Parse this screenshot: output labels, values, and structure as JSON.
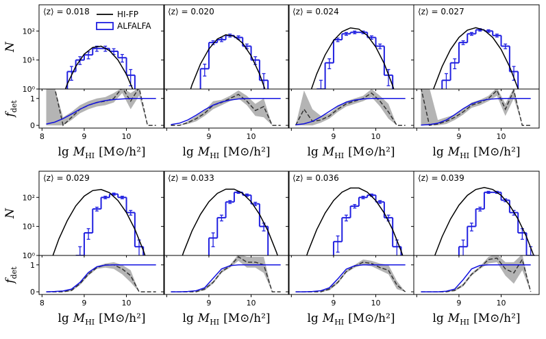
{
  "axes": {
    "xlabel": {
      "prefix": "lg",
      "symbol": "M",
      "subscript": "HI",
      "unit": "[M⊙/h²]"
    },
    "ylabel_top": "N",
    "ylabel_bottom": {
      "symbol": "f",
      "subscript": "det"
    },
    "xlim": [
      7.93,
      10.9
    ],
    "xticks": [
      8,
      9,
      10
    ],
    "ylim": [
      1,
      800
    ],
    "log_y": true,
    "yticks": [
      {
        "value": 1,
        "label": "10⁰"
      },
      {
        "value": 10,
        "label": "10¹"
      },
      {
        "value": 100,
        "label": "10²"
      }
    ],
    "fdet_ylim": [
      -0.1,
      1.35
    ],
    "fdet_yticks": [
      0,
      1
    ],
    "legend": [
      {
        "name": "HI-FP",
        "color": "#000000"
      },
      {
        "name": "ALFALFA",
        "color": "#1f1fe0"
      }
    ],
    "colors": {
      "fdet_model": "#1010e0",
      "fdet_ratio": "#333333",
      "band": "#b4b4b4"
    }
  },
  "chart_data": [
    {
      "type": "histogram",
      "annotation": "⟨z⟩ = 0.018",
      "bins": [
        8.0,
        8.2,
        8.4,
        8.6,
        8.8,
        9.0,
        9.2,
        9.4,
        9.6,
        9.8,
        10.0,
        10.2,
        10.4,
        10.6,
        10.8
      ],
      "counts": [
        null,
        null,
        null,
        4,
        10,
        15,
        25,
        25,
        20,
        12,
        3,
        null,
        null,
        null
      ],
      "errors": [
        null,
        null,
        null,
        2,
        3,
        4,
        5,
        5,
        4.5,
        3.5,
        1.7,
        null,
        null,
        null
      ],
      "curve_x": [
        8.2,
        8.4,
        8.6,
        8.8,
        9.0,
        9.2,
        9.4,
        9.6,
        9.8,
        10.0,
        10.2,
        10.4,
        10.6,
        10.8
      ],
      "curve": [
        0.03,
        0.25,
        1.5,
        6,
        16,
        27,
        30,
        21,
        10,
        3.2,
        0.66,
        0.09,
        0.01,
        0.001
      ],
      "fdet_x": [
        8.1,
        8.3,
        8.5,
        8.7,
        8.9,
        9.1,
        9.3,
        9.5,
        9.7,
        9.9,
        10.1,
        10.3,
        10.5,
        10.7
      ],
      "fdet_model": [
        0.05,
        0.12,
        0.25,
        0.42,
        0.6,
        0.75,
        0.85,
        0.92,
        0.96,
        0.98,
        1,
        1,
        1,
        1
      ],
      "fdet_ratio": [
        1.4,
        1.4,
        0,
        0.3,
        0.6,
        0.75,
        0.85,
        0.9,
        1.0,
        1.4,
        0.9,
        1.4,
        0,
        0
      ],
      "fdet_low": [
        0,
        0,
        0,
        0.2,
        0.45,
        0.6,
        0.7,
        0.75,
        0.85,
        1.2,
        0.6,
        1.1,
        0,
        0
      ],
      "fdet_high": [
        1.4,
        1.4,
        0.3,
        0.5,
        0.75,
        0.9,
        1.0,
        1.05,
        1.2,
        1.4,
        1.2,
        1.4,
        0,
        0
      ]
    },
    {
      "type": "histogram",
      "annotation": "⟨z⟩ = 0.020",
      "bins": [
        8.0,
        8.2,
        8.4,
        8.6,
        8.8,
        9.0,
        9.2,
        9.4,
        9.6,
        9.8,
        10.0,
        10.2,
        10.4,
        10.6,
        10.8
      ],
      "counts": [
        null,
        null,
        null,
        null,
        5,
        40,
        50,
        70,
        60,
        30,
        10,
        2,
        null,
        null
      ],
      "errors": [
        null,
        null,
        null,
        null,
        2.2,
        6,
        7,
        8,
        8,
        5.5,
        3,
        1.4,
        null,
        null
      ],
      "curve_x": [
        8.2,
        8.4,
        8.6,
        8.8,
        9.0,
        9.2,
        9.4,
        9.6,
        9.8,
        10.0,
        10.2,
        10.4,
        10.6,
        10.8
      ],
      "curve": [
        0.013,
        0.17,
        1.4,
        7.3,
        24,
        53,
        74,
        66,
        38,
        14,
        3.3,
        0.5,
        0.05,
        0.005
      ],
      "fdet_x": [
        8.1,
        8.3,
        8.5,
        8.7,
        8.9,
        9.1,
        9.3,
        9.5,
        9.7,
        9.9,
        10.1,
        10.3,
        10.5,
        10.7
      ],
      "fdet_model": [
        0.03,
        0.08,
        0.2,
        0.38,
        0.58,
        0.75,
        0.87,
        0.94,
        0.98,
        1,
        1,
        1,
        1,
        1
      ],
      "fdet_ratio": [
        0,
        0,
        0.1,
        0.25,
        0.45,
        0.75,
        0.85,
        1.0,
        1.15,
        0.9,
        0.55,
        0.7,
        0,
        0
      ],
      "fdet_low": [
        0,
        0,
        0.05,
        0.15,
        0.35,
        0.6,
        0.75,
        0.9,
        1.0,
        0.75,
        0.35,
        0.3,
        0,
        0
      ],
      "fdet_high": [
        0,
        0,
        0.15,
        0.35,
        0.55,
        0.9,
        0.95,
        1.1,
        1.3,
        1.1,
        0.8,
        1.0,
        0,
        0
      ]
    },
    {
      "type": "histogram",
      "annotation": "⟨z⟩ = 0.024",
      "bins": [
        8.0,
        8.2,
        8.4,
        8.6,
        8.8,
        9.0,
        9.2,
        9.4,
        9.6,
        9.8,
        10.0,
        10.2,
        10.4,
        10.6,
        10.8
      ],
      "counts": [
        null,
        null,
        null,
        1,
        8,
        50,
        80,
        90,
        90,
        60,
        30,
        3,
        null,
        null
      ],
      "errors": [
        null,
        null,
        null,
        1,
        3,
        7,
        9,
        9.5,
        9.5,
        8,
        5.5,
        1.7,
        null,
        null
      ],
      "curve_x": [
        8.2,
        8.4,
        8.6,
        8.8,
        9.0,
        9.2,
        9.4,
        9.6,
        9.8,
        10.0,
        10.2,
        10.4,
        10.6,
        10.8
      ],
      "curve": [
        0.05,
        0.49,
        3.3,
        15,
        47,
        95,
        128,
        116,
        70,
        28,
        7.5,
        1.3,
        0.16,
        0.01
      ],
      "fdet_x": [
        8.1,
        8.3,
        8.5,
        8.7,
        8.9,
        9.1,
        9.3,
        9.5,
        9.7,
        9.9,
        10.1,
        10.3,
        10.5,
        10.7
      ],
      "fdet_model": [
        0.02,
        0.06,
        0.15,
        0.32,
        0.52,
        0.72,
        0.86,
        0.94,
        0.98,
        1,
        1,
        1,
        1,
        1
      ],
      "fdet_ratio": [
        0,
        0.6,
        0.15,
        0.2,
        0.35,
        0.6,
        0.8,
        0.9,
        1.0,
        1.2,
        0.9,
        0.5,
        0,
        0
      ],
      "fdet_low": [
        0,
        0,
        0,
        0.1,
        0.25,
        0.5,
        0.7,
        0.8,
        0.9,
        1.05,
        0.7,
        0.25,
        0,
        0
      ],
      "fdet_high": [
        0,
        1.3,
        0.6,
        0.35,
        0.45,
        0.7,
        0.9,
        1.0,
        1.1,
        1.35,
        1.1,
        0.8,
        0,
        0
      ]
    },
    {
      "type": "histogram",
      "annotation": "⟨z⟩ = 0.027",
      "bins": [
        8.0,
        8.2,
        8.4,
        8.6,
        8.8,
        9.0,
        9.2,
        9.4,
        9.6,
        9.8,
        10.0,
        10.2,
        10.4,
        10.6,
        10.8
      ],
      "counts": [
        null,
        null,
        null,
        2,
        8,
        40,
        80,
        110,
        100,
        70,
        30,
        4,
        null,
        null
      ],
      "errors": [
        null,
        null,
        null,
        1.4,
        3,
        6,
        9,
        10.5,
        10,
        8,
        5.5,
        2,
        null,
        null
      ],
      "curve_x": [
        8.2,
        8.4,
        8.6,
        8.8,
        9.0,
        9.2,
        9.4,
        9.6,
        9.8,
        10.0,
        10.2,
        10.4,
        10.6,
        10.8
      ],
      "curve": [
        0.12,
        1.03,
        5.9,
        23,
        60,
        107,
        130,
        107,
        60,
        23,
        5.9,
        1.03,
        0.12,
        0.01
      ],
      "fdet_x": [
        8.1,
        8.3,
        8.5,
        8.7,
        8.9,
        9.1,
        9.3,
        9.5,
        9.7,
        9.9,
        10.1,
        10.3,
        10.5,
        10.7
      ],
      "fdet_model": [
        0.01,
        0.03,
        0.08,
        0.2,
        0.4,
        0.62,
        0.8,
        0.91,
        0.97,
        0.99,
        1,
        1,
        1,
        1
      ],
      "fdet_ratio": [
        1.4,
        0,
        0.05,
        0.15,
        0.3,
        0.5,
        0.75,
        0.85,
        1.0,
        1.3,
        0.6,
        1.3,
        0,
        0
      ],
      "fdet_low": [
        0,
        0,
        0,
        0.05,
        0.2,
        0.4,
        0.65,
        0.75,
        0.9,
        1.1,
        0.35,
        1.0,
        0,
        0
      ],
      "fdet_high": [
        1.4,
        1.4,
        0.2,
        0.3,
        0.4,
        0.6,
        0.85,
        0.95,
        1.1,
        1.4,
        0.8,
        1.4,
        0,
        0
      ]
    },
    {
      "type": "histogram",
      "annotation": "⟨z⟩ = 0.029",
      "bins": [
        8.0,
        8.2,
        8.4,
        8.6,
        8.8,
        9.0,
        9.2,
        9.4,
        9.6,
        9.8,
        10.0,
        10.2,
        10.4,
        10.6,
        10.8
      ],
      "counts": [
        null,
        null,
        null,
        null,
        1,
        6,
        40,
        100,
        130,
        100,
        30,
        2,
        null,
        null
      ],
      "errors": [
        null,
        null,
        null,
        null,
        1,
        2.4,
        6,
        10,
        11,
        10,
        5.5,
        1.4,
        null,
        null
      ],
      "curve_x": [
        8.2,
        8.4,
        8.6,
        8.8,
        9.0,
        9.2,
        9.4,
        9.6,
        9.8,
        10.0,
        10.2,
        10.4,
        10.6,
        10.8
      ],
      "curve": [
        0.58,
        3.7,
        16,
        51,
        111,
        172,
        188,
        145,
        78,
        30,
        8,
        1.5,
        0.2,
        0.02
      ],
      "fdet_x": [
        8.1,
        8.3,
        8.5,
        8.7,
        8.9,
        9.1,
        9.3,
        9.5,
        9.7,
        9.9,
        10.1,
        10.3,
        10.5,
        10.7
      ],
      "fdet_model": [
        0,
        0.01,
        0.03,
        0.1,
        0.35,
        0.72,
        0.93,
        0.99,
        1,
        1,
        1,
        1,
        1,
        1
      ],
      "fdet_ratio": [
        0,
        0,
        0,
        0.05,
        0.3,
        0.65,
        0.9,
        1.0,
        1.0,
        0.85,
        0.6,
        0,
        0,
        0
      ],
      "fdet_low": [
        0,
        0,
        0,
        0.02,
        0.25,
        0.6,
        0.85,
        0.9,
        0.85,
        0.65,
        0.35,
        0,
        0,
        0
      ],
      "fdet_high": [
        0,
        0,
        0,
        0.1,
        0.35,
        0.7,
        0.95,
        1.05,
        1.1,
        1.0,
        0.8,
        0,
        0,
        0
      ]
    },
    {
      "type": "histogram",
      "annotation": "⟨z⟩ = 0.033",
      "bins": [
        8.0,
        8.2,
        8.4,
        8.6,
        8.8,
        9.0,
        9.2,
        9.4,
        9.6,
        9.8,
        10.0,
        10.2,
        10.4,
        10.6,
        10.8
      ],
      "counts": [
        null,
        null,
        null,
        null,
        null,
        4,
        20,
        70,
        150,
        120,
        60,
        10,
        null,
        null
      ],
      "errors": [
        null,
        null,
        null,
        null,
        null,
        2,
        4.5,
        8,
        12,
        11,
        8,
        3,
        null,
        null
      ],
      "curve_x": [
        8.2,
        8.4,
        8.6,
        8.8,
        9.0,
        9.2,
        9.4,
        9.6,
        9.8,
        10.0,
        10.2,
        10.4,
        10.6,
        10.8
      ],
      "curve": [
        0.18,
        1.3,
        7,
        26,
        71,
        138,
        192,
        192,
        138,
        71,
        26,
        7,
        1.3,
        0.18
      ],
      "fdet_x": [
        8.1,
        8.3,
        8.5,
        8.7,
        8.9,
        9.1,
        9.3,
        9.5,
        9.7,
        9.9,
        10.1,
        10.3,
        10.5,
        10.7
      ],
      "fdet_model": [
        0,
        0,
        0.01,
        0.04,
        0.15,
        0.5,
        0.85,
        0.97,
        1,
        1,
        1,
        1,
        1,
        1
      ],
      "fdet_ratio": [
        0,
        0,
        0,
        0,
        0.1,
        0.35,
        0.75,
        0.95,
        1.3,
        1.1,
        1.1,
        1.0,
        0,
        0
      ],
      "fdet_low": [
        0,
        0,
        0,
        0,
        0.05,
        0.3,
        0.7,
        0.9,
        1.15,
        0.9,
        0.9,
        0.7,
        0,
        0
      ],
      "fdet_high": [
        0,
        0,
        0,
        0,
        0.15,
        0.4,
        0.8,
        1.0,
        1.4,
        1.3,
        1.3,
        1.3,
        0,
        0
      ]
    },
    {
      "type": "histogram",
      "annotation": "⟨z⟩ = 0.036",
      "bins": [
        8.0,
        8.2,
        8.4,
        8.6,
        8.8,
        9.0,
        9.2,
        9.4,
        9.6,
        9.8,
        10.0,
        10.2,
        10.4,
        10.6,
        10.8
      ],
      "counts": [
        null,
        null,
        null,
        null,
        null,
        3,
        20,
        50,
        100,
        120,
        70,
        20,
        2,
        null
      ],
      "errors": [
        null,
        null,
        null,
        null,
        null,
        1.7,
        4.5,
        7,
        10,
        11,
        8,
        4.5,
        1.4,
        null
      ],
      "curve_x": [
        8.2,
        8.4,
        8.6,
        8.8,
        9.0,
        9.2,
        9.4,
        9.6,
        9.8,
        10.0,
        10.2,
        10.4,
        10.6,
        10.8
      ],
      "curve": [
        0.2,
        1.43,
        7.7,
        29,
        78,
        152,
        211,
        211,
        152,
        78,
        29,
        7.7,
        1.43,
        0.2
      ],
      "fdet_x": [
        8.1,
        8.3,
        8.5,
        8.7,
        8.9,
        9.1,
        9.3,
        9.5,
        9.7,
        9.9,
        10.1,
        10.3,
        10.5,
        10.7
      ],
      "fdet_model": [
        0,
        0,
        0.01,
        0.04,
        0.15,
        0.48,
        0.84,
        0.97,
        1,
        1,
        1,
        1,
        1,
        1
      ],
      "fdet_ratio": [
        0,
        0,
        0,
        0,
        0.1,
        0.35,
        0.75,
        0.95,
        1.1,
        1.05,
        0.9,
        0.8,
        0.25,
        0
      ],
      "fdet_low": [
        0,
        0,
        0,
        0,
        0.05,
        0.3,
        0.7,
        0.9,
        1.0,
        0.95,
        0.8,
        0.65,
        0.1,
        0
      ],
      "fdet_high": [
        0,
        0,
        0,
        0,
        0.15,
        0.4,
        0.8,
        1.0,
        1.2,
        1.15,
        1.05,
        1.0,
        0.4,
        0
      ]
    },
    {
      "type": "histogram",
      "annotation": "⟨z⟩ = 0.039",
      "bins": [
        8.0,
        8.2,
        8.4,
        8.6,
        8.8,
        9.0,
        9.2,
        9.4,
        9.6,
        9.8,
        10.0,
        10.2,
        10.4,
        10.6,
        10.8
      ],
      "counts": [
        null,
        null,
        null,
        null,
        null,
        2,
        10,
        40,
        150,
        150,
        80,
        30,
        6,
        1
      ],
      "errors": [
        null,
        null,
        null,
        null,
        null,
        1.4,
        3,
        6,
        12,
        12,
        9,
        5.5,
        2.4,
        1
      ],
      "curve_x": [
        8.2,
        8.4,
        8.6,
        8.8,
        9.0,
        9.2,
        9.4,
        9.6,
        9.8,
        10.0,
        10.2,
        10.4,
        10.6,
        10.8
      ],
      "curve": [
        0.1,
        0.78,
        4.4,
        18,
        54,
        118,
        188,
        220,
        188,
        118,
        54,
        18,
        4.4,
        0.78
      ],
      "fdet_x": [
        8.1,
        8.3,
        8.5,
        8.7,
        8.9,
        9.1,
        9.3,
        9.5,
        9.7,
        9.9,
        10.1,
        10.3,
        10.5,
        10.7
      ],
      "fdet_model": [
        0,
        0,
        0,
        0.02,
        0.1,
        0.45,
        0.85,
        0.98,
        1,
        1,
        1,
        1,
        1,
        1
      ],
      "fdet_ratio": [
        0,
        0,
        0,
        0,
        0.05,
        0.25,
        0.65,
        0.9,
        1.2,
        1.25,
        0.85,
        0.7,
        1.2,
        0
      ],
      "fdet_low": [
        0,
        0,
        0,
        0,
        0.02,
        0.2,
        0.6,
        0.85,
        1.05,
        1.1,
        0.6,
        0.3,
        0.8,
        0
      ],
      "fdet_high": [
        0,
        0,
        0,
        0,
        0.1,
        0.3,
        0.7,
        0.95,
        1.3,
        1.4,
        1.1,
        1.1,
        1.4,
        0
      ]
    }
  ]
}
